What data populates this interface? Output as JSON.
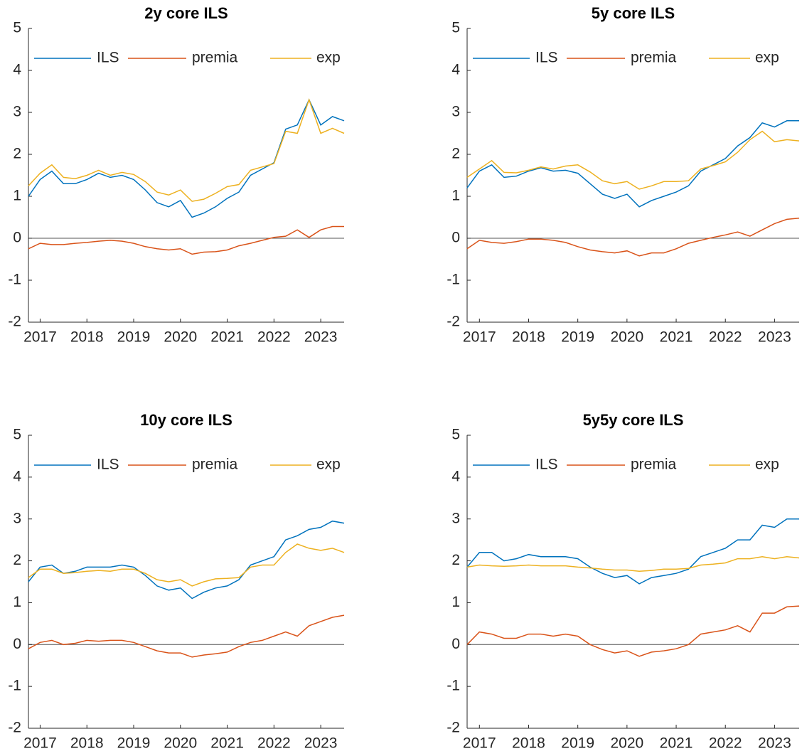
{
  "chart_data": [
    {
      "type": "line",
      "title": "2y core ILS",
      "legend": "top",
      "x": [
        2016.75,
        2017.0,
        2017.25,
        2017.5,
        2017.75,
        2018.0,
        2018.25,
        2018.5,
        2018.75,
        2019.0,
        2019.25,
        2019.5,
        2019.75,
        2020.0,
        2020.25,
        2020.5,
        2020.75,
        2021.0,
        2021.25,
        2021.5,
        2021.75,
        2022.0,
        2022.25,
        2022.5,
        2022.75,
        2023.0,
        2023.25,
        2023.5
      ],
      "xlim": [
        2016.75,
        2023.5
      ],
      "xticks": [
        2017,
        2018,
        2019,
        2020,
        2021,
        2022,
        2023
      ],
      "ylim": [
        -2,
        5
      ],
      "yticks": [
        -2,
        -1,
        0,
        1,
        2,
        3,
        4,
        5
      ],
      "series": [
        {
          "name": "ILS",
          "color": "#0072bd",
          "values": [
            1.0,
            1.4,
            1.6,
            1.3,
            1.3,
            1.4,
            1.55,
            1.45,
            1.5,
            1.4,
            1.15,
            0.85,
            0.75,
            0.9,
            0.5,
            0.6,
            0.75,
            0.95,
            1.1,
            1.5,
            1.65,
            1.8,
            2.6,
            2.7,
            3.3,
            2.7,
            2.9,
            2.8
          ]
        },
        {
          "name": "premia",
          "color": "#d95319",
          "values": [
            -0.25,
            -0.12,
            -0.15,
            -0.15,
            -0.12,
            -0.1,
            -0.07,
            -0.05,
            -0.07,
            -0.12,
            -0.2,
            -0.25,
            -0.28,
            -0.25,
            -0.38,
            -0.33,
            -0.32,
            -0.28,
            -0.18,
            -0.12,
            -0.05,
            0.02,
            0.05,
            0.2,
            0.02,
            0.2,
            0.28,
            0.28
          ]
        },
        {
          "name": "exp",
          "color": "#edb120",
          "values": [
            1.25,
            1.55,
            1.75,
            1.45,
            1.42,
            1.5,
            1.62,
            1.5,
            1.57,
            1.52,
            1.35,
            1.1,
            1.03,
            1.15,
            0.88,
            0.93,
            1.07,
            1.23,
            1.28,
            1.62,
            1.7,
            1.78,
            2.55,
            2.5,
            3.3,
            2.5,
            2.62,
            2.5
          ]
        }
      ]
    },
    {
      "type": "line",
      "title": "5y core ILS",
      "legend": "top",
      "x": [
        2016.75,
        2017.0,
        2017.25,
        2017.5,
        2017.75,
        2018.0,
        2018.25,
        2018.5,
        2018.75,
        2019.0,
        2019.25,
        2019.5,
        2019.75,
        2020.0,
        2020.25,
        2020.5,
        2020.75,
        2021.0,
        2021.25,
        2021.5,
        2021.75,
        2022.0,
        2022.25,
        2022.5,
        2022.75,
        2023.0,
        2023.25,
        2023.5
      ],
      "xlim": [
        2016.75,
        2023.5
      ],
      "xticks": [
        2017,
        2018,
        2019,
        2020,
        2021,
        2022,
        2023
      ],
      "ylim": [
        -2,
        5
      ],
      "yticks": [
        -2,
        -1,
        0,
        1,
        2,
        3,
        4,
        5
      ],
      "series": [
        {
          "name": "ILS",
          "color": "#0072bd",
          "values": [
            1.2,
            1.6,
            1.75,
            1.45,
            1.48,
            1.6,
            1.68,
            1.6,
            1.62,
            1.55,
            1.3,
            1.05,
            0.95,
            1.05,
            0.75,
            0.9,
            1.0,
            1.1,
            1.25,
            1.6,
            1.75,
            1.9,
            2.2,
            2.4,
            2.75,
            2.65,
            2.8,
            2.8
          ]
        },
        {
          "name": "premia",
          "color": "#d95319",
          "values": [
            -0.25,
            -0.05,
            -0.1,
            -0.12,
            -0.08,
            -0.02,
            -0.02,
            -0.05,
            -0.1,
            -0.2,
            -0.28,
            -0.32,
            -0.35,
            -0.3,
            -0.42,
            -0.35,
            -0.35,
            -0.25,
            -0.12,
            -0.05,
            0.02,
            0.08,
            0.15,
            0.05,
            0.2,
            0.35,
            0.45,
            0.48
          ]
        },
        {
          "name": "exp",
          "color": "#edb120",
          "values": [
            1.45,
            1.65,
            1.85,
            1.57,
            1.56,
            1.62,
            1.7,
            1.65,
            1.72,
            1.75,
            1.58,
            1.37,
            1.3,
            1.35,
            1.17,
            1.25,
            1.35,
            1.35,
            1.37,
            1.65,
            1.73,
            1.82,
            2.05,
            2.35,
            2.55,
            2.3,
            2.35,
            2.32
          ]
        }
      ]
    },
    {
      "type": "line",
      "title": "10y core ILS",
      "legend": "top",
      "x": [
        2016.75,
        2017.0,
        2017.25,
        2017.5,
        2017.75,
        2018.0,
        2018.25,
        2018.5,
        2018.75,
        2019.0,
        2019.25,
        2019.5,
        2019.75,
        2020.0,
        2020.25,
        2020.5,
        2020.75,
        2021.0,
        2021.25,
        2021.5,
        2021.75,
        2022.0,
        2022.25,
        2022.5,
        2022.75,
        2023.0,
        2023.25,
        2023.5
      ],
      "xlim": [
        2016.75,
        2023.5
      ],
      "xticks": [
        2017,
        2018,
        2019,
        2020,
        2021,
        2022,
        2023
      ],
      "ylim": [
        -2,
        5
      ],
      "yticks": [
        -2,
        -1,
        0,
        1,
        2,
        3,
        4,
        5
      ],
      "series": [
        {
          "name": "ILS",
          "color": "#0072bd",
          "values": [
            1.5,
            1.85,
            1.9,
            1.7,
            1.75,
            1.85,
            1.85,
            1.85,
            1.9,
            1.85,
            1.65,
            1.4,
            1.3,
            1.35,
            1.1,
            1.25,
            1.35,
            1.4,
            1.55,
            1.9,
            2.0,
            2.1,
            2.5,
            2.6,
            2.75,
            2.8,
            2.95,
            2.9
          ]
        },
        {
          "name": "premia",
          "color": "#d95319",
          "values": [
            -0.1,
            0.05,
            0.1,
            0.0,
            0.03,
            0.1,
            0.08,
            0.1,
            0.1,
            0.05,
            -0.05,
            -0.15,
            -0.2,
            -0.2,
            -0.3,
            -0.25,
            -0.22,
            -0.18,
            -0.05,
            0.05,
            0.1,
            0.2,
            0.3,
            0.2,
            0.45,
            0.55,
            0.65,
            0.7
          ]
        },
        {
          "name": "exp",
          "color": "#edb120",
          "values": [
            1.6,
            1.8,
            1.8,
            1.7,
            1.72,
            1.75,
            1.77,
            1.75,
            1.8,
            1.8,
            1.7,
            1.55,
            1.5,
            1.55,
            1.4,
            1.5,
            1.57,
            1.58,
            1.6,
            1.85,
            1.9,
            1.9,
            2.2,
            2.4,
            2.3,
            2.25,
            2.3,
            2.2
          ]
        }
      ]
    },
    {
      "type": "line",
      "title": "5y5y core ILS",
      "legend": "top",
      "x": [
        2016.75,
        2017.0,
        2017.25,
        2017.5,
        2017.75,
        2018.0,
        2018.25,
        2018.5,
        2018.75,
        2019.0,
        2019.25,
        2019.5,
        2019.75,
        2020.0,
        2020.25,
        2020.5,
        2020.75,
        2021.0,
        2021.25,
        2021.5,
        2021.75,
        2022.0,
        2022.25,
        2022.5,
        2022.75,
        2023.0,
        2023.25,
        2023.5
      ],
      "xlim": [
        2016.75,
        2023.5
      ],
      "xticks": [
        2017,
        2018,
        2019,
        2020,
        2021,
        2022,
        2023
      ],
      "ylim": [
        -2,
        5
      ],
      "yticks": [
        -2,
        -1,
        0,
        1,
        2,
        3,
        4,
        5
      ],
      "series": [
        {
          "name": "ILS",
          "color": "#0072bd",
          "values": [
            1.85,
            2.2,
            2.2,
            2.0,
            2.05,
            2.15,
            2.1,
            2.1,
            2.1,
            2.05,
            1.85,
            1.7,
            1.6,
            1.65,
            1.45,
            1.6,
            1.65,
            1.7,
            1.8,
            2.1,
            2.2,
            2.3,
            2.5,
            2.5,
            2.85,
            2.8,
            3.0,
            3.0
          ]
        },
        {
          "name": "premia",
          "color": "#d95319",
          "values": [
            0.0,
            0.3,
            0.25,
            0.15,
            0.15,
            0.25,
            0.25,
            0.2,
            0.25,
            0.2,
            0.0,
            -0.12,
            -0.2,
            -0.15,
            -0.28,
            -0.18,
            -0.15,
            -0.1,
            0.0,
            0.25,
            0.3,
            0.35,
            0.45,
            0.3,
            0.75,
            0.75,
            0.9,
            0.92
          ]
        },
        {
          "name": "exp",
          "color": "#edb120",
          "values": [
            1.85,
            1.9,
            1.88,
            1.87,
            1.88,
            1.9,
            1.88,
            1.88,
            1.88,
            1.85,
            1.83,
            1.8,
            1.78,
            1.78,
            1.75,
            1.77,
            1.8,
            1.8,
            1.82,
            1.9,
            1.92,
            1.95,
            2.05,
            2.05,
            2.1,
            2.05,
            2.1,
            2.07
          ]
        }
      ]
    }
  ]
}
